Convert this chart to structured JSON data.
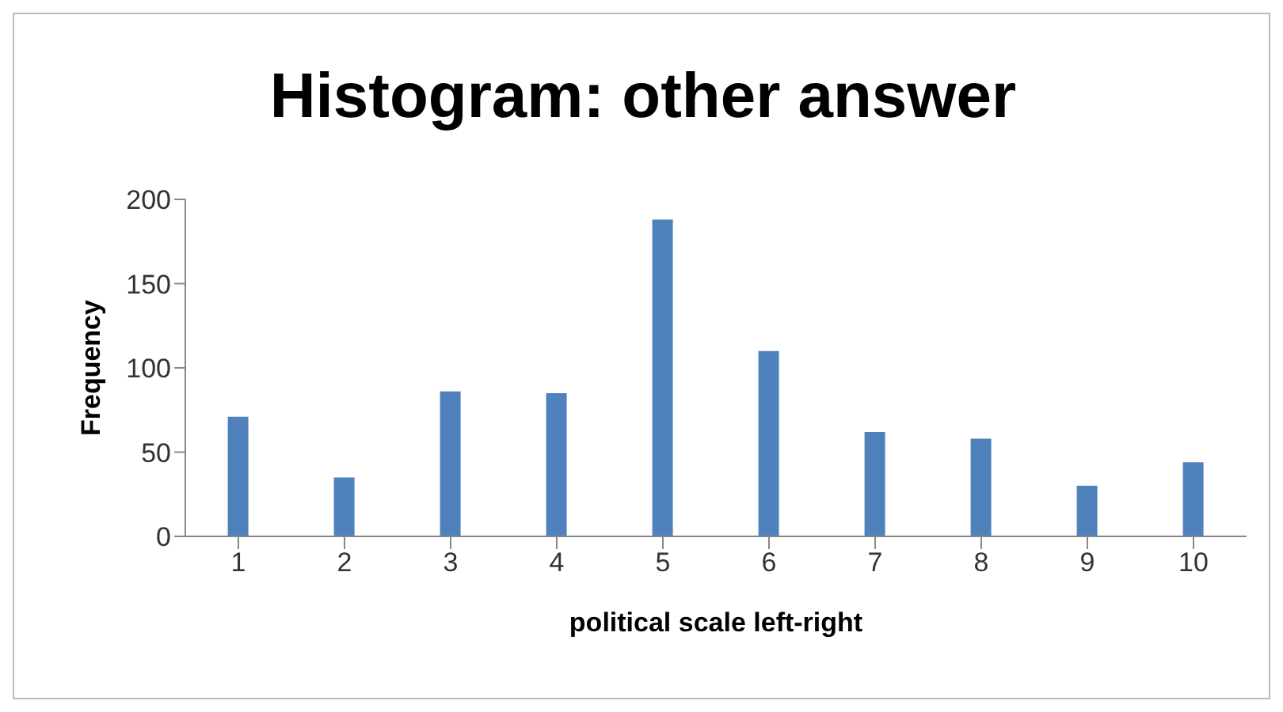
{
  "chart_data": {
    "type": "bar",
    "title": "Histogram: other answer",
    "xlabel": "political scale left-right",
    "ylabel": "Frequency",
    "categories": [
      "1",
      "2",
      "3",
      "4",
      "5",
      "6",
      "7",
      "8",
      "9",
      "10"
    ],
    "values": [
      71,
      35,
      86,
      85,
      188,
      110,
      62,
      58,
      30,
      44
    ],
    "color": "#4f81bd",
    "ylim": [
      0,
      200
    ],
    "yticks": [
      0,
      50,
      100,
      150,
      200
    ],
    "grid": false,
    "legend": false
  }
}
